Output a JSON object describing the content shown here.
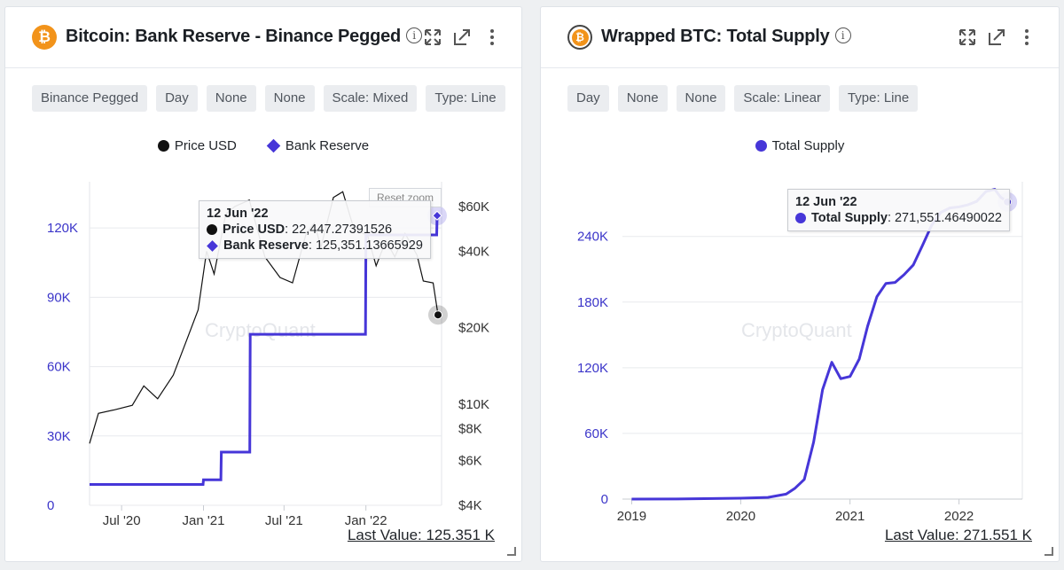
{
  "panels": [
    {
      "title": "Bitcoin: Bank Reserve - Binance Pegged",
      "chips": [
        "Binance Pegged",
        "Day",
        "None",
        "None",
        "Scale: Mixed",
        "Type: Line"
      ],
      "legend": [
        "Price USD",
        "Bank Reserve"
      ],
      "reset_zoom": "Reset zoom",
      "watermark": "CryptoQuant",
      "tooltip": {
        "date": "12 Jun '22",
        "rows": [
          {
            "label": "Price USD",
            "value": ": 22,447.27391526"
          },
          {
            "label": "Bank Reserve",
            "value": ": 125,351.13665929"
          }
        ]
      },
      "last_value": "Last Value: 125.351 K"
    },
    {
      "title": "Wrapped BTC: Total Supply",
      "chips": [
        "Day",
        "None",
        "None",
        "Scale: Linear",
        "Type: Line"
      ],
      "legend": [
        "Total Supply"
      ],
      "watermark": "CryptoQuant",
      "tooltip": {
        "date": "12 Jun '22",
        "rows": [
          {
            "label": "Total Supply",
            "value": ": 271,551.46490022"
          }
        ]
      },
      "last_value": "Last Value: 271.551 K"
    }
  ],
  "colors": {
    "reserve": "#4636d8",
    "price": "#111111",
    "brand_orange": "#f2931a"
  },
  "icons": [
    "bitcoin-icon",
    "info-icon",
    "expand-icon",
    "popout-icon",
    "more-icon",
    "resize-handle-icon"
  ],
  "chart_data": [
    {
      "type": "line",
      "title": "Bitcoin: Bank Reserve - Binance Pegged",
      "x_ticks": [
        "Jul '20",
        "Jan '21",
        "Jul '21",
        "Jan '22"
      ],
      "y_left": {
        "ticks": [
          "0",
          "30K",
          "60K",
          "90K",
          "120K"
        ],
        "range": [
          0,
          140000
        ]
      },
      "y_right": {
        "ticks": [
          "$4K",
          "$6K",
          "$8K",
          "$10K",
          "$20K",
          "$40K",
          "$60K"
        ],
        "scale": "log",
        "range": [
          4000,
          75000
        ]
      },
      "series": [
        {
          "name": "Bank Reserve",
          "axis": "left",
          "color": "#4636d8",
          "points": [
            [
              "2020-04-20",
              9000
            ],
            [
              "2020-12-31",
              9000
            ],
            [
              "2021-01-01",
              11000
            ],
            [
              "2021-02-09",
              11000
            ],
            [
              "2021-02-10",
              23000
            ],
            [
              "2021-04-15",
              23000
            ],
            [
              "2021-04-16",
              74000
            ],
            [
              "2021-12-31",
              74000
            ],
            [
              "2022-01-01",
              117000
            ],
            [
              "2022-06-09",
              117000
            ],
            [
              "2022-06-10",
              125351
            ]
          ]
        },
        {
          "name": "Price USD",
          "axis": "right",
          "color": "#111111",
          "points": [
            [
              "2020-04-20",
              7000
            ],
            [
              "2020-05-10",
              9200
            ],
            [
              "2020-06-15",
              9500
            ],
            [
              "2020-07-25",
              9900
            ],
            [
              "2020-08-20",
              11800
            ],
            [
              "2020-09-20",
              10500
            ],
            [
              "2020-10-25",
              13000
            ],
            [
              "2020-11-25",
              18000
            ],
            [
              "2020-12-20",
              23500
            ],
            [
              "2021-01-08",
              40000
            ],
            [
              "2021-01-25",
              32500
            ],
            [
              "2021-02-20",
              56000
            ],
            [
              "2021-03-13",
              60000
            ],
            [
              "2021-04-14",
              63500
            ],
            [
              "2021-05-19",
              38000
            ],
            [
              "2021-06-22",
              31500
            ],
            [
              "2021-07-20",
              30000
            ],
            [
              "2021-08-20",
              47000
            ],
            [
              "2021-09-07",
              51500
            ],
            [
              "2021-09-22",
              41500
            ],
            [
              "2021-10-20",
              65000
            ],
            [
              "2021-11-10",
              68500
            ],
            [
              "2021-12-05",
              49000
            ],
            [
              "2022-01-05",
              46000
            ],
            [
              "2022-01-24",
              35000
            ],
            [
              "2022-02-15",
              44000
            ],
            [
              "2022-03-07",
              38000
            ],
            [
              "2022-03-30",
              47000
            ],
            [
              "2022-04-26",
              38500
            ],
            [
              "2022-05-10",
              30500
            ],
            [
              "2022-06-01",
              30000
            ],
            [
              "2022-06-12",
              22447
            ]
          ]
        }
      ],
      "grid": true
    },
    {
      "type": "line",
      "title": "Wrapped BTC: Total Supply",
      "x_ticks": [
        "2019",
        "2020",
        "2021",
        "2022"
      ],
      "y": {
        "ticks": [
          "0",
          "60K",
          "120K",
          "180K",
          "240K"
        ],
        "range": [
          0,
          290000
        ]
      },
      "series": [
        {
          "name": "Total Supply",
          "color": "#4636d8",
          "points": [
            [
              "2019-01-01",
              0
            ],
            [
              "2019-06-01",
              100
            ],
            [
              "2020-01-01",
              800
            ],
            [
              "2020-04-01",
              1500
            ],
            [
              "2020-06-01",
              4500
            ],
            [
              "2020-07-01",
              10000
            ],
            [
              "2020-08-01",
              18000
            ],
            [
              "2020-09-01",
              52000
            ],
            [
              "2020-10-01",
              100000
            ],
            [
              "2020-11-01",
              125000
            ],
            [
              "2020-12-01",
              110000
            ],
            [
              "2021-01-01",
              112000
            ],
            [
              "2021-02-01",
              128000
            ],
            [
              "2021-03-01",
              158000
            ],
            [
              "2021-04-01",
              185000
            ],
            [
              "2021-05-01",
              197000
            ],
            [
              "2021-06-01",
              198000
            ],
            [
              "2021-07-01",
              205000
            ],
            [
              "2021-08-01",
              214000
            ],
            [
              "2021-09-01",
              232000
            ],
            [
              "2021-10-01",
              250000
            ],
            [
              "2021-11-01",
              262000
            ],
            [
              "2021-12-01",
              266000
            ],
            [
              "2022-01-01",
              267000
            ],
            [
              "2022-02-01",
              269000
            ],
            [
              "2022-03-01",
              272000
            ],
            [
              "2022-04-01",
              281000
            ],
            [
              "2022-05-01",
              283000
            ],
            [
              "2022-05-20",
              276000
            ],
            [
              "2022-06-12",
              271551
            ]
          ]
        }
      ],
      "grid": true
    }
  ]
}
